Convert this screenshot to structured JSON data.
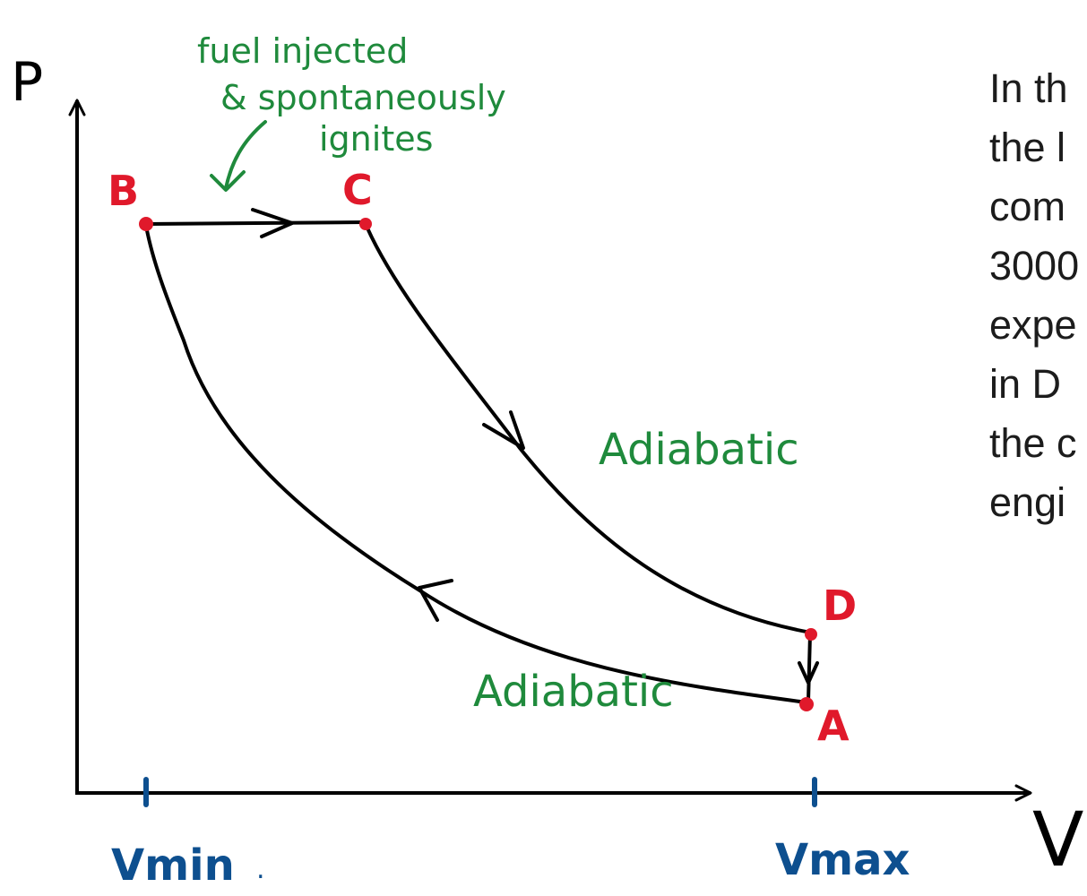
{
  "axes": {
    "y_label": "P",
    "x_label": "V",
    "v_min_label": "Vmin",
    "v_max_label": "Vmax",
    "v_min_dot": "."
  },
  "points": {
    "B": "B",
    "C": "C",
    "D": "D",
    "A": "A"
  },
  "annotations": {
    "fuel_line1": "fuel injected",
    "fuel_line2": "& spontaneously",
    "fuel_line3": "ignites",
    "adiabatic_upper": "Adiabatic",
    "adiabatic_lower": "Adiabatic"
  },
  "side_text_lines": [
    "In th",
    "the l",
    "com",
    "3000",
    "expe",
    "in D",
    "the c",
    "engi"
  ],
  "colors": {
    "curve": "#000000",
    "point": "#e0192b",
    "point_label": "#e0192b",
    "annotation": "#1f8a3c",
    "axis_label": "#0d4f8f"
  }
}
